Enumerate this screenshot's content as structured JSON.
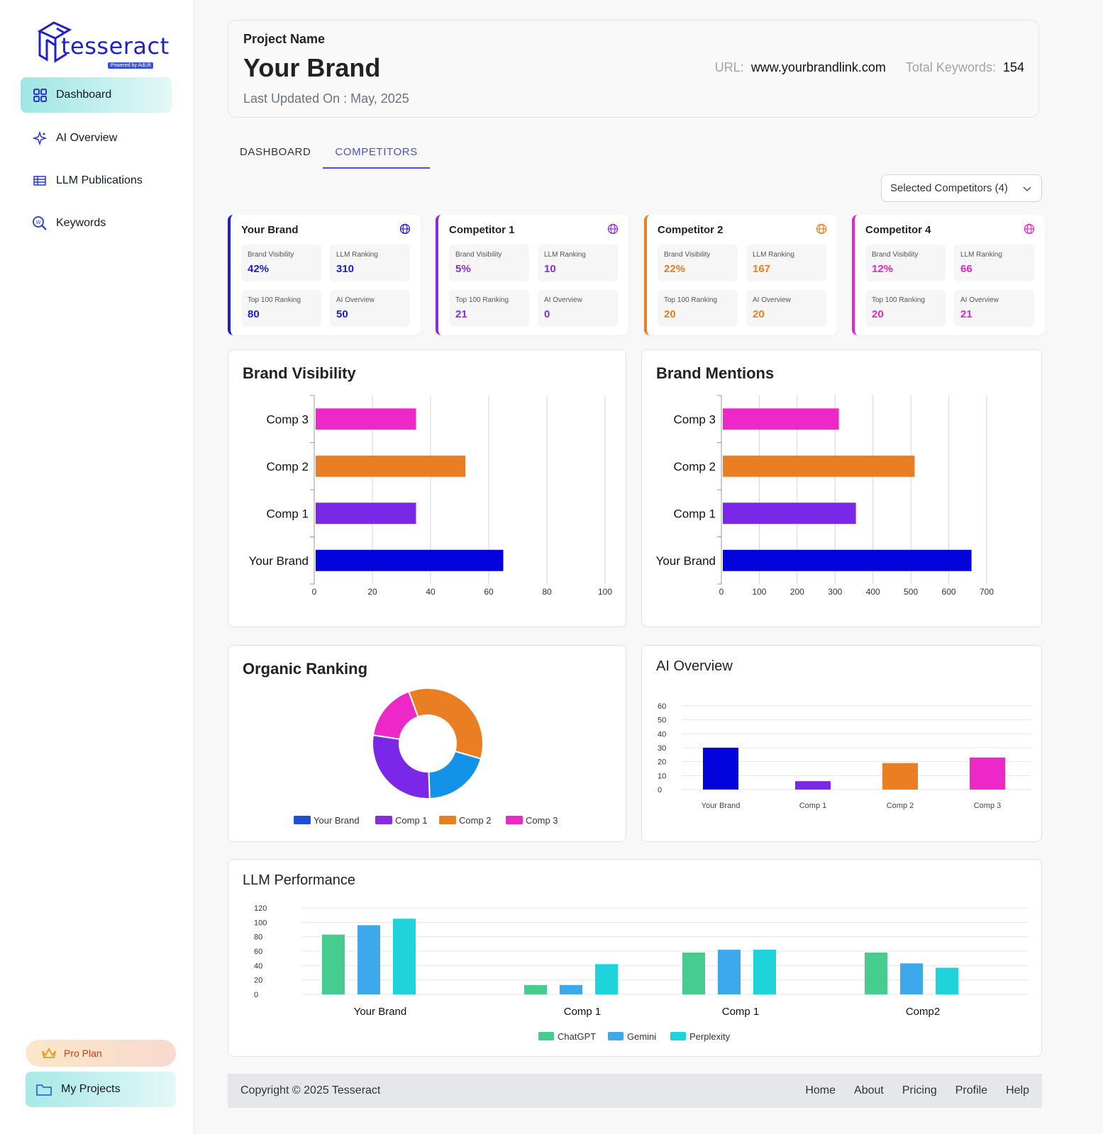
{
  "sidebar": {
    "logo": {
      "text": "tesseract",
      "sub": "Powered by AdLift"
    },
    "items": [
      {
        "label": "Dashboard",
        "icon": "grid-icon",
        "active": true
      },
      {
        "label": "AI Overview",
        "icon": "sparkle-icon",
        "active": false
      },
      {
        "label": "LLM Publications",
        "icon": "table-icon",
        "active": false
      },
      {
        "label": "Keywords",
        "icon": "keyword-search-icon",
        "active": false
      }
    ],
    "pro_plan": "Pro Plan",
    "my_projects": "My Projects"
  },
  "header": {
    "project_label": "Project Name",
    "project_name": "Your Brand",
    "last_updated": "Last Updated On : May, 2025",
    "url_label": "URL:",
    "url_value": "www.yourbrandlink.com",
    "keywords_label": "Total Keywords:",
    "keywords_value": "154"
  },
  "tabs": [
    {
      "label": "DASHBOARD",
      "active": false
    },
    {
      "label": "COMPETITORS",
      "active": true
    }
  ],
  "competitor_select": "Selected Competitors (4)",
  "competitor_cards": [
    {
      "title": "Your Brand",
      "color": "#1d1dd6",
      "brand_visibility_label": "Brand Visibility",
      "brand_visibility": "42%",
      "llm_ranking_label": "LLM Ranking",
      "llm_ranking": "310",
      "top100_label": "Top 100 Ranking",
      "top100": "80",
      "ai_overview_label": "AI Overview",
      "ai_overview": "50"
    },
    {
      "title": "Competitor 1",
      "color": "#8a2be2",
      "brand_visibility_label": "Brand Visibility",
      "brand_visibility": "5%",
      "llm_ranking_label": "LLM Ranking",
      "llm_ranking": "10",
      "top100_label": "Top 100 Ranking",
      "top100": "21",
      "ai_overview_label": "AI Overview",
      "ai_overview": "0"
    },
    {
      "title": "Competitor 2",
      "color": "#ea7e23",
      "brand_visibility_label": "Brand Visibility",
      "brand_visibility": "22%",
      "llm_ranking_label": "LLM Ranking",
      "llm_ranking": "167",
      "top100_label": "Top 100 Ranking",
      "top100": "20",
      "ai_overview_label": "AI Overview",
      "ai_overview": "20"
    },
    {
      "title": "Competitor 4",
      "color": "#e826c8",
      "brand_visibility_label": "Brand Visibility",
      "brand_visibility": "12%",
      "llm_ranking_label": "LLM Ranking",
      "llm_ranking": "66",
      "top100_label": "Top 100 Ranking",
      "top100": "20",
      "ai_overview_label": "AI Overview",
      "ai_overview": "21"
    }
  ],
  "chart_data": [
    {
      "id": "brand_visibility",
      "type": "bar",
      "orientation": "horizontal",
      "title": "Brand Visibility",
      "categories": [
        "Comp 3",
        "Comp 2",
        "Comp 1",
        "Your Brand"
      ],
      "values": [
        35,
        52,
        35,
        65
      ],
      "colors": [
        "#ee27c9",
        "#ea7e23",
        "#7a27e8",
        "#0303dc"
      ],
      "xlim": [
        0,
        100
      ],
      "xticks": [
        0,
        20,
        40,
        60,
        80,
        100
      ],
      "grid": true
    },
    {
      "id": "brand_mentions",
      "type": "bar",
      "orientation": "horizontal",
      "title": "Brand Mentions",
      "categories": [
        "Comp 3",
        "Comp 2",
        "Comp 1",
        "Your Brand"
      ],
      "values": [
        310,
        510,
        355,
        660
      ],
      "colors": [
        "#ee27c9",
        "#ea7e23",
        "#7a27e8",
        "#0303dc"
      ],
      "xlim": [
        0,
        700
      ],
      "xticks": [
        0,
        100,
        200,
        300,
        400,
        500,
        600,
        700
      ],
      "grid": true
    },
    {
      "id": "organic_ranking",
      "type": "pie",
      "donut": true,
      "title": "Organic Ranking",
      "labels": [
        "Comp 2",
        "Your Brand",
        "Comp 1",
        "Comp 3"
      ],
      "values": [
        35,
        20,
        28,
        17
      ],
      "colors": [
        "#ea7e23",
        "#1293e8",
        "#7a27e8",
        "#ee27c9"
      ],
      "legend": [
        {
          "label": "Your Brand",
          "color": "#1b4fd8"
        },
        {
          "label": "Comp 1",
          "color": "#8a2be2"
        },
        {
          "label": "Comp 2",
          "color": "#ea7e23"
        },
        {
          "label": "Comp 3",
          "color": "#ee27c9"
        }
      ],
      "legend_position": "bottom"
    },
    {
      "id": "ai_overview",
      "type": "bar",
      "title": "AI Overview",
      "categories": [
        "Your Brand",
        "Comp 1",
        "Comp 2",
        "Comp 3"
      ],
      "values": [
        30,
        6,
        19,
        23
      ],
      "colors": [
        "#0303dc",
        "#7a27e8",
        "#ea7e23",
        "#ee27c9"
      ],
      "ylim": [
        0,
        60
      ],
      "yticks": [
        0,
        10,
        20,
        30,
        40,
        50,
        60
      ],
      "grid": true
    },
    {
      "id": "llm_performance",
      "type": "bar",
      "title": "LLM Performance",
      "categories": [
        "Your Brand",
        "Comp 1",
        "Comp 1",
        "Comp2"
      ],
      "series": [
        {
          "name": "ChatGPT",
          "color": "#45cc8e",
          "values": [
            83,
            13,
            58,
            58
          ]
        },
        {
          "name": "Gemini",
          "color": "#3ea8ec",
          "values": [
            96,
            13,
            62,
            43
          ]
        },
        {
          "name": "Perplexity",
          "color": "#1ed3d9",
          "values": [
            105,
            42,
            62,
            37
          ]
        }
      ],
      "ylim": [
        0,
        120
      ],
      "yticks": [
        0,
        20,
        40,
        60,
        80,
        100,
        120
      ],
      "grid": true,
      "legend_position": "bottom"
    }
  ],
  "footer": {
    "copyright": "Copyright © 2025 Tesseract",
    "links": [
      "Home",
      "About",
      "Pricing",
      "Profile",
      "Help"
    ]
  }
}
